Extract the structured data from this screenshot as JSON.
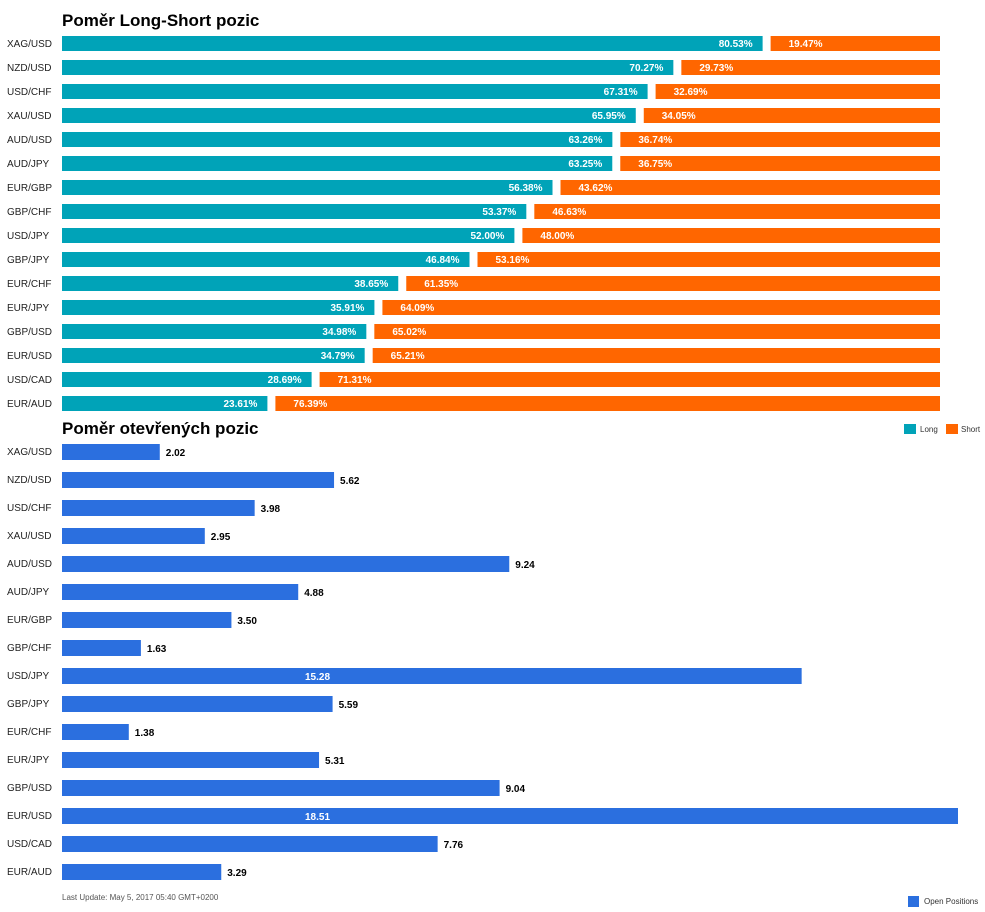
{
  "colors": {
    "long": "#00a3b8",
    "short": "#ff6600",
    "open": "#2b6fdf"
  },
  "footer": {
    "last_update": "Last Update: May 5, 2017 05:40 GMT+0200"
  },
  "chart_data": [
    {
      "type": "bar",
      "orientation": "horizontal",
      "stacked": true,
      "title": "Poměr Long-Short pozic",
      "categories": [
        "XAG/USD",
        "NZD/USD",
        "USD/CHF",
        "XAU/USD",
        "AUD/USD",
        "AUD/JPY",
        "EUR/GBP",
        "GBP/CHF",
        "USD/JPY",
        "GBP/JPY",
        "EUR/CHF",
        "EUR/JPY",
        "GBP/USD",
        "EUR/USD",
        "USD/CAD",
        "EUR/AUD"
      ],
      "series": [
        {
          "name": "Long",
          "color": "#00a3b8",
          "values": [
            80.53,
            70.27,
            67.31,
            65.95,
            63.26,
            63.25,
            56.38,
            53.37,
            52.0,
            46.84,
            38.65,
            35.91,
            34.98,
            34.79,
            28.69,
            23.61
          ],
          "labels": [
            "80.53%",
            "70.27%",
            "67.31%",
            "65.95%",
            "63.26%",
            "63.25%",
            "56.38%",
            "53.37%",
            "52.00%",
            "46.84%",
            "38.65%",
            "35.91%",
            "34.98%",
            "34.79%",
            "28.69%",
            "23.61%"
          ]
        },
        {
          "name": "Short",
          "color": "#ff6600",
          "values": [
            19.47,
            29.73,
            32.69,
            34.05,
            36.74,
            36.75,
            43.62,
            46.63,
            48.0,
            53.16,
            61.35,
            64.09,
            65.02,
            65.21,
            71.31,
            76.39
          ],
          "labels": [
            "19.47%",
            "29.73%",
            "32.69%",
            "34.05%",
            "36.74%",
            "36.75%",
            "43.62%",
            "46.63%",
            "48.00%",
            "53.16%",
            "61.35%",
            "64.09%",
            "65.02%",
            "65.21%",
            "71.31%",
            "76.39%"
          ]
        }
      ],
      "legend": "top-right",
      "xlim": [
        0,
        100
      ]
    },
    {
      "type": "bar",
      "orientation": "horizontal",
      "title": "Poměr otevřených pozic",
      "categories": [
        "XAG/USD",
        "NZD/USD",
        "USD/CHF",
        "XAU/USD",
        "AUD/USD",
        "AUD/JPY",
        "EUR/GBP",
        "GBP/CHF",
        "USD/JPY",
        "GBP/JPY",
        "EUR/CHF",
        "EUR/JPY",
        "GBP/USD",
        "EUR/USD",
        "USD/CAD",
        "EUR/AUD"
      ],
      "series": [
        {
          "name": "Open Positions",
          "color": "#2b6fdf",
          "values": [
            2.02,
            5.62,
            3.98,
            2.95,
            9.24,
            4.88,
            3.5,
            1.63,
            15.28,
            5.59,
            1.38,
            5.31,
            9.04,
            18.51,
            7.76,
            3.29
          ],
          "labels": [
            "2.02",
            "5.62",
            "3.98",
            "2.95",
            "9.24",
            "4.88",
            "3.50",
            "1.63",
            "15.28",
            "5.59",
            "1.38",
            "5.31",
            "9.04",
            "18.51",
            "7.76",
            "3.29"
          ]
        }
      ],
      "legend": "bottom-right",
      "xlim": [
        0,
        18.51
      ]
    }
  ]
}
